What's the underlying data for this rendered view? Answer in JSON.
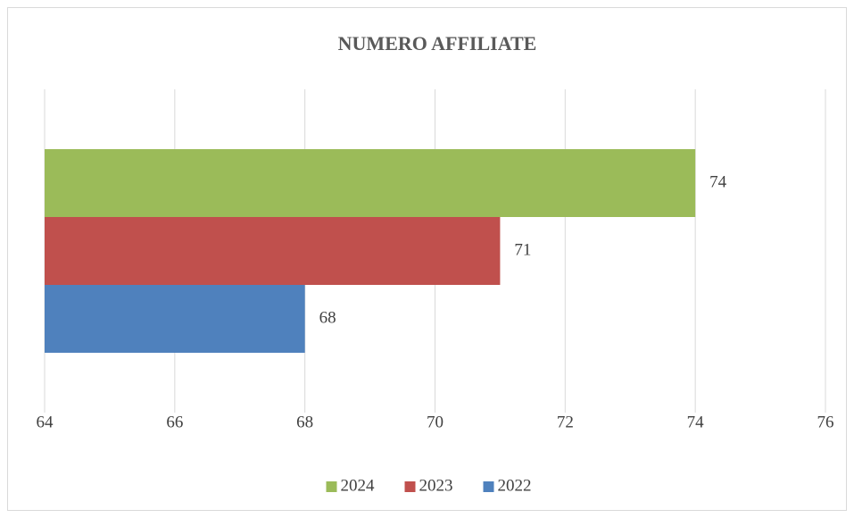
{
  "chart_data": {
    "type": "bar",
    "orientation": "horizontal",
    "title": "NUMERO AFFILIATE",
    "categories": [
      null
    ],
    "series": [
      {
        "name": "2024",
        "color": "#9bbb59",
        "values": [
          74
        ]
      },
      {
        "name": "2023",
        "color": "#c0504d",
        "values": [
          71
        ]
      },
      {
        "name": "2022",
        "color": "#4f81bd",
        "values": [
          68
        ]
      }
    ],
    "xlim": [
      64,
      76
    ],
    "xticks": [
      64,
      66,
      68,
      70,
      72,
      74,
      76
    ],
    "grid": true,
    "legend": "bottom"
  }
}
